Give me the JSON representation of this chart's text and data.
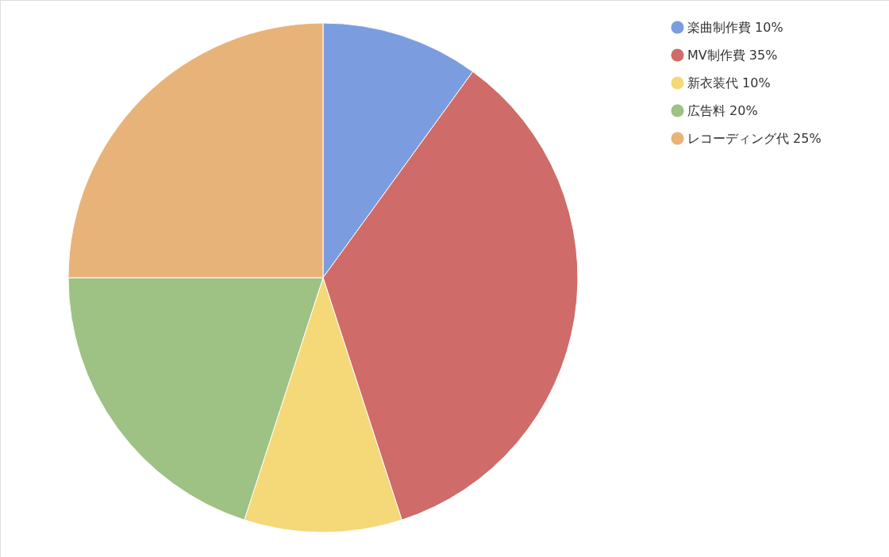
{
  "chart_data": {
    "type": "pie",
    "categories": [
      "楽曲制作費",
      "MV制作費",
      "新衣装代",
      "広告料",
      "レコーディング代"
    ],
    "values": [
      10,
      35,
      10,
      20,
      25
    ],
    "value_labels": [
      "10%",
      "35%",
      "10%",
      "20%",
      "25%"
    ],
    "colors": [
      "#7b9de0",
      "#cf6b68",
      "#f5d877",
      "#9dc284",
      "#e8b378"
    ],
    "legend": "top right"
  }
}
